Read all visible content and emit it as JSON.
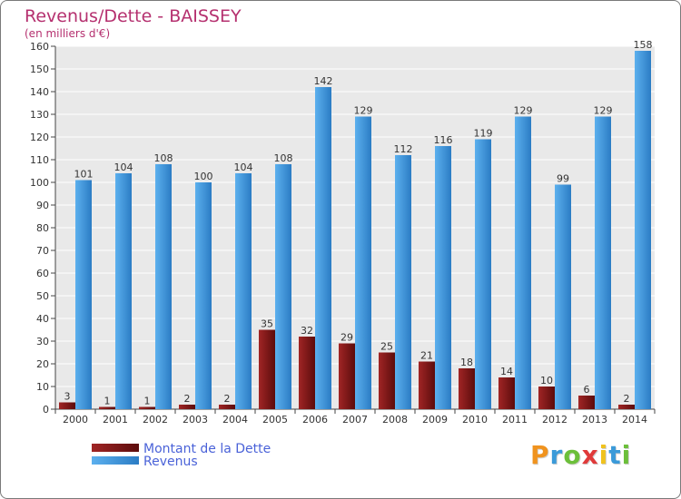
{
  "chart_data": {
    "type": "bar",
    "title": "Revenus/Dette - BAISSEY",
    "subtitle": "(en milliers d'€)",
    "categories": [
      "2000",
      "2001",
      "2002",
      "2003",
      "2004",
      "2005",
      "2006",
      "2007",
      "2008",
      "2009",
      "2010",
      "2011",
      "2012",
      "2013",
      "2014"
    ],
    "series": [
      {
        "name": "Montant de la Dette",
        "color": "#8b1a1a",
        "values": [
          3,
          1,
          1,
          2,
          2,
          35,
          32,
          29,
          25,
          21,
          18,
          14,
          10,
          6,
          2
        ]
      },
      {
        "name": "Revenus",
        "color": "#3a8fd9",
        "values": [
          101,
          104,
          108,
          100,
          104,
          108,
          142,
          129,
          112,
          116,
          119,
          129,
          99,
          129,
          158
        ]
      }
    ],
    "ylim": [
      0,
      160
    ],
    "yticks": [
      0,
      10,
      20,
      30,
      40,
      50,
      60,
      70,
      80,
      90,
      100,
      110,
      120,
      130,
      140,
      150,
      160
    ],
    "grid": true,
    "legend_position": "bottom-left",
    "colors": {
      "title": "#b5306f",
      "legend_text": "#4a62d8",
      "plot_bg": "#e9e9e9",
      "grid": "#ffffff"
    }
  },
  "logo": {
    "letters": [
      "P",
      "r",
      "o",
      "x",
      "i",
      "t",
      "i"
    ],
    "colors": [
      "#f0931e",
      "#3a9ad9",
      "#6cbf3a",
      "#e03a3a",
      "#f0c21e",
      "#3a9ad9",
      "#6cbf3a"
    ]
  }
}
